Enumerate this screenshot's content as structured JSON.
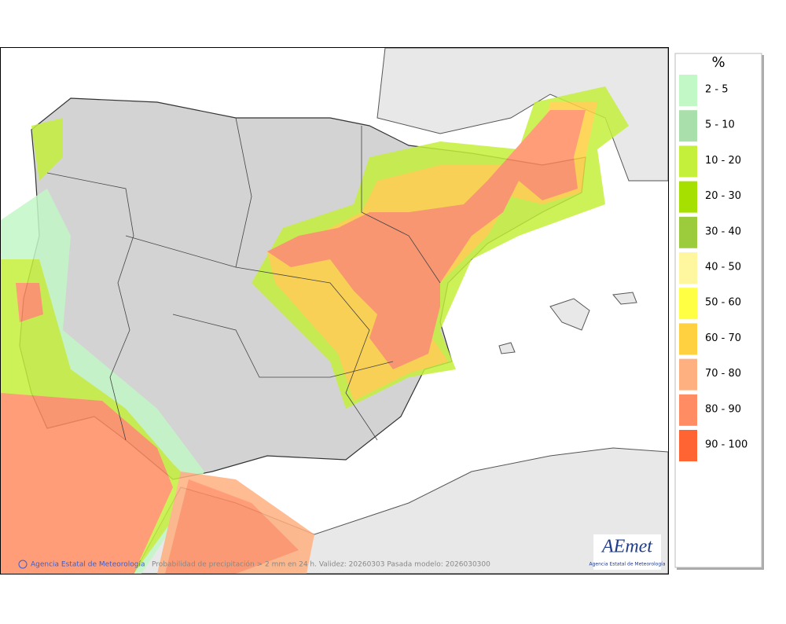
{
  "legend": {
    "title": "%",
    "items": [
      {
        "label": "2 - 5",
        "color": "#c2f7c6"
      },
      {
        "label": "5 - 10",
        "color": "#a9dfaa"
      },
      {
        "label": "10 - 20",
        "color": "#c4f03c"
      },
      {
        "label": "20 - 30",
        "color": "#a6e000"
      },
      {
        "label": "30 - 40",
        "color": "#9ccc3c"
      },
      {
        "label": "40 - 50",
        "color": "#fff6a0"
      },
      {
        "label": "50 - 60",
        "color": "#ffff44"
      },
      {
        "label": "60 - 70",
        "color": "#ffd040"
      },
      {
        "label": "70 - 80",
        "color": "#ffb080"
      },
      {
        "label": "80 - 90",
        "color": "#ff8c62"
      },
      {
        "label": "90 - 100",
        "color": "#ff6432"
      }
    ]
  },
  "footer": {
    "credit": "Agencia Estatal de Meteorología",
    "caption": "Probabilidad de precipitación > 2 mm en 24 h. Validez: 20260303 Pasada modelo: 2026030300"
  },
  "logo": {
    "name": "AEmet",
    "subtitle": "Agencia Estatal de Meteorología"
  }
}
